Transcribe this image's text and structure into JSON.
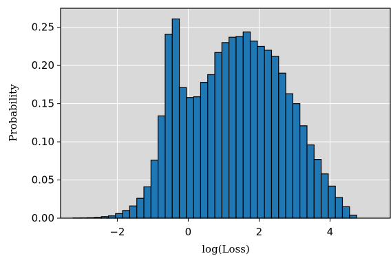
{
  "chart_data": {
    "type": "histogram",
    "xlabel": "log(Loss)",
    "ylabel": "Probability",
    "xlim": [
      -3.6,
      5.7
    ],
    "ylim": [
      0.0,
      0.275
    ],
    "x_ticks": [
      -2,
      0,
      2,
      4
    ],
    "x_tick_labels": [
      "−2",
      "0",
      "2",
      "4"
    ],
    "y_ticks": [
      0.0,
      0.05,
      0.1,
      0.15,
      0.2,
      0.25
    ],
    "y_tick_labels": [
      "0.00",
      "0.05",
      "0.10",
      "0.15",
      "0.20",
      "0.25"
    ],
    "grid": true,
    "bar_color": "#1f77b4",
    "edge_color": "#000000",
    "background_color": "#d9d9d9",
    "bins": [
      {
        "x0": -3.25,
        "x1": -3.05,
        "value": 0.0003
      },
      {
        "x0": -3.05,
        "x1": -2.85,
        "value": 0.0004
      },
      {
        "x0": -2.85,
        "x1": -2.65,
        "value": 0.0006
      },
      {
        "x0": -2.65,
        "x1": -2.45,
        "value": 0.001
      },
      {
        "x0": -2.45,
        "x1": -2.25,
        "value": 0.002
      },
      {
        "x0": -2.25,
        "x1": -2.05,
        "value": 0.003
      },
      {
        "x0": -2.05,
        "x1": -1.85,
        "value": 0.006
      },
      {
        "x0": -1.85,
        "x1": -1.65,
        "value": 0.01
      },
      {
        "x0": -1.65,
        "x1": -1.45,
        "value": 0.016
      },
      {
        "x0": -1.45,
        "x1": -1.25,
        "value": 0.026
      },
      {
        "x0": -1.25,
        "x1": -1.05,
        "value": 0.041
      },
      {
        "x0": -1.05,
        "x1": -0.85,
        "value": 0.076
      },
      {
        "x0": -0.85,
        "x1": -0.65,
        "value": 0.134
      },
      {
        "x0": -0.65,
        "x1": -0.45,
        "value": 0.241
      },
      {
        "x0": -0.45,
        "x1": -0.25,
        "value": 0.261
      },
      {
        "x0": -0.25,
        "x1": -0.05,
        "value": 0.171
      },
      {
        "x0": -0.05,
        "x1": 0.15,
        "value": 0.158
      },
      {
        "x0": 0.15,
        "x1": 0.35,
        "value": 0.159
      },
      {
        "x0": 0.35,
        "x1": 0.55,
        "value": 0.178
      },
      {
        "x0": 0.55,
        "x1": 0.75,
        "value": 0.188
      },
      {
        "x0": 0.75,
        "x1": 0.95,
        "value": 0.217
      },
      {
        "x0": 0.95,
        "x1": 1.15,
        "value": 0.23
      },
      {
        "x0": 1.15,
        "x1": 1.35,
        "value": 0.237
      },
      {
        "x0": 1.35,
        "x1": 1.55,
        "value": 0.238
      },
      {
        "x0": 1.55,
        "x1": 1.75,
        "value": 0.244
      },
      {
        "x0": 1.75,
        "x1": 1.95,
        "value": 0.232
      },
      {
        "x0": 1.95,
        "x1": 2.15,
        "value": 0.225
      },
      {
        "x0": 2.15,
        "x1": 2.35,
        "value": 0.22
      },
      {
        "x0": 2.35,
        "x1": 2.55,
        "value": 0.212
      },
      {
        "x0": 2.55,
        "x1": 2.75,
        "value": 0.19
      },
      {
        "x0": 2.75,
        "x1": 2.95,
        "value": 0.163
      },
      {
        "x0": 2.95,
        "x1": 3.15,
        "value": 0.15
      },
      {
        "x0": 3.15,
        "x1": 3.35,
        "value": 0.121
      },
      {
        "x0": 3.35,
        "x1": 3.55,
        "value": 0.096
      },
      {
        "x0": 3.55,
        "x1": 3.75,
        "value": 0.077
      },
      {
        "x0": 3.75,
        "x1": 3.95,
        "value": 0.058
      },
      {
        "x0": 3.95,
        "x1": 4.15,
        "value": 0.042
      },
      {
        "x0": 4.15,
        "x1": 4.35,
        "value": 0.027
      },
      {
        "x0": 4.35,
        "x1": 4.55,
        "value": 0.015
      },
      {
        "x0": 4.55,
        "x1": 4.75,
        "value": 0.004
      }
    ]
  }
}
